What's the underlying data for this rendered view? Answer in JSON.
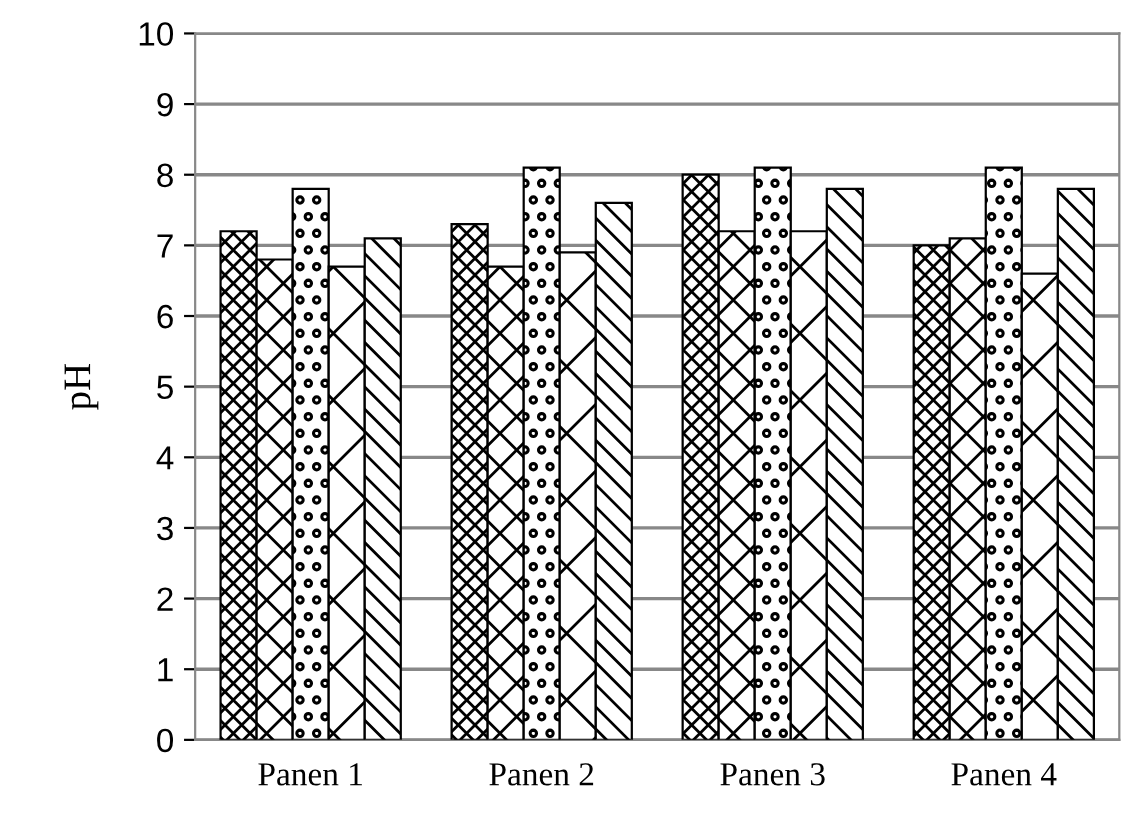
{
  "chart_data": {
    "type": "bar",
    "ylabel": "pH",
    "categories": [
      "Panen 1",
      "Panen 2",
      "Panen 3",
      "Panen 4"
    ],
    "series": [
      {
        "color": "#000000",
        "values": [
          7.2,
          7.3,
          8.0,
          7.0
        ]
      },
      {
        "color": "#000000",
        "values": [
          6.8,
          6.7,
          7.2,
          7.1
        ]
      },
      {
        "color": "#000000",
        "values": [
          7.8,
          8.1,
          8.1,
          8.1
        ]
      },
      {
        "color": "#000000",
        "values": [
          6.7,
          6.9,
          7.2,
          6.6
        ]
      },
      {
        "color": "#000000",
        "values": [
          7.1,
          7.6,
          7.8,
          7.8
        ]
      }
    ],
    "ylim": [
      0,
      10
    ],
    "yticks": [
      0,
      1,
      2,
      3,
      4,
      5,
      6,
      7,
      8,
      9,
      10
    ],
    "grid": "y",
    "legend": false
  }
}
